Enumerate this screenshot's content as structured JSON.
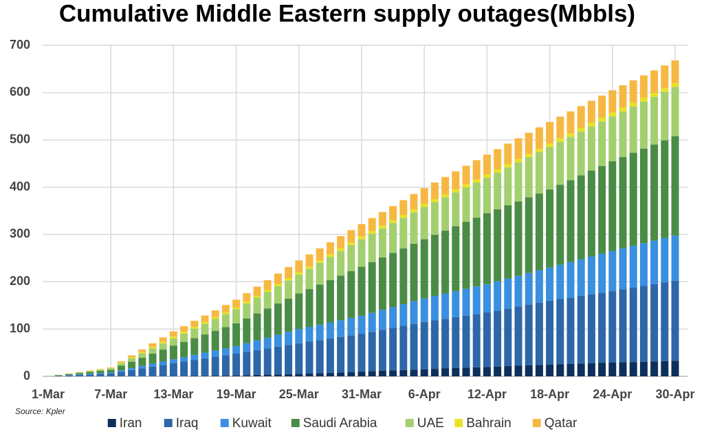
{
  "chart_data": {
    "type": "stacked_bar",
    "title": "Cumulative Middle Eastern supply outages(Mbbls)",
    "source": "Source: Kpler",
    "categories": [
      "1-Mar",
      null,
      null,
      null,
      null,
      null,
      "7-Mar",
      null,
      null,
      null,
      null,
      null,
      "13-Mar",
      null,
      null,
      null,
      null,
      null,
      "19-Mar",
      null,
      null,
      null,
      null,
      null,
      "25-Mar",
      null,
      null,
      null,
      null,
      null,
      "31-Mar",
      null,
      null,
      null,
      null,
      null,
      "6-Apr",
      null,
      null,
      null,
      null,
      null,
      "12-Apr",
      null,
      null,
      null,
      null,
      null,
      "18-Apr",
      null,
      null,
      null,
      null,
      null,
      "24-Apr",
      null,
      null,
      null,
      null,
      null,
      "30-Apr"
    ],
    "series": [
      {
        "name": "Iran",
        "color": "#0d2f5c",
        "values": [
          0,
          0,
          0,
          0,
          0,
          0,
          0,
          0,
          0,
          0,
          0,
          0,
          0,
          0.3,
          0.7,
          1,
          1.3,
          1.7,
          2,
          2.5,
          3,
          3.5,
          4,
          4.5,
          5,
          5.8,
          6.7,
          7.5,
          8.3,
          9.2,
          10,
          10.8,
          11.7,
          12.5,
          13.3,
          14.2,
          15,
          15.8,
          16.7,
          17.5,
          18.3,
          19.2,
          20,
          20.8,
          21.7,
          22.5,
          23.3,
          24.2,
          25,
          25.7,
          26.3,
          27,
          27.7,
          28.3,
          29,
          29.7,
          30.3,
          31,
          31.7,
          32.3,
          33
        ]
      },
      {
        "name": "Iraq",
        "color": "#2e67a8",
        "values": [
          0,
          1,
          2,
          3,
          4,
          5,
          6,
          9.7,
          13.3,
          17,
          20.7,
          24.3,
          28,
          31,
          34,
          37,
          40,
          43,
          46,
          49.2,
          52.3,
          55.5,
          58.7,
          61.8,
          65,
          67.5,
          70,
          72.5,
          75,
          77.5,
          80,
          83.3,
          86.7,
          90,
          93.3,
          96.7,
          100,
          102.5,
          105,
          107.5,
          110,
          112.5,
          115,
          118.3,
          121.7,
          125,
          128.3,
          131.7,
          135,
          137.7,
          140.3,
          143,
          145.7,
          148.3,
          151,
          154,
          157,
          160,
          163,
          166,
          169
        ]
      },
      {
        "name": "Kuwait",
        "color": "#3a8fe0",
        "values": [
          0,
          0.3,
          0.7,
          1,
          1.3,
          1.7,
          2,
          3,
          4,
          5,
          6,
          7,
          8,
          9.3,
          10.7,
          12,
          13.3,
          14.7,
          16,
          18.3,
          20.7,
          23,
          25.3,
          27.7,
          30,
          31.3,
          32.7,
          34,
          35.3,
          36.7,
          38,
          40,
          42,
          44,
          46,
          48,
          50,
          51.7,
          53.3,
          55,
          56.7,
          58.3,
          60,
          61.7,
          63.3,
          65,
          66.7,
          68.3,
          70,
          72.5,
          75,
          77.5,
          80,
          82.5,
          85,
          86.8,
          88.7,
          90.5,
          92.3,
          94.2,
          96
        ]
      },
      {
        "name": "Saudi Arabia",
        "color": "#4a8c45",
        "values": [
          0,
          1,
          2,
          3,
          4,
          5,
          6,
          9.8,
          13.7,
          17.5,
          21.3,
          25.2,
          29,
          32.2,
          35.3,
          38.5,
          41.7,
          44.8,
          48,
          52.5,
          57,
          61.5,
          66,
          70.5,
          75,
          79.8,
          84.7,
          89.5,
          94.3,
          99.2,
          104,
          107.5,
          111,
          114.5,
          118,
          121.5,
          125,
          129.2,
          133.3,
          137.5,
          141.7,
          145.8,
          150,
          152.5,
          155,
          157.5,
          160,
          162.5,
          165,
          169.2,
          173.3,
          177.5,
          181.7,
          185.8,
          190,
          193.3,
          196.7,
          200,
          203.3,
          206.7,
          210
        ]
      },
      {
        "name": "UAE",
        "color": "#a3cf6f",
        "values": [
          0,
          0.5,
          1,
          1.5,
          2,
          2.5,
          3,
          5,
          7,
          9,
          11,
          13,
          15,
          17.5,
          20,
          22.5,
          25,
          27.5,
          30,
          31.7,
          33.3,
          35,
          36.7,
          38.3,
          40,
          43,
          46,
          49,
          52,
          55,
          58,
          59.7,
          61.3,
          63,
          64.7,
          66.3,
          68,
          69.2,
          70.3,
          71.5,
          72.7,
          73.8,
          75,
          77.5,
          80,
          82.5,
          85,
          87.5,
          90,
          90.8,
          91.7,
          92.5,
          93.3,
          94.2,
          95,
          96.5,
          98,
          99.5,
          101,
          102.5,
          104
        ]
      },
      {
        "name": "Bahrain",
        "color": "#e8e22a",
        "values": [
          0,
          0.2,
          0.3,
          0.5,
          0.7,
          0.8,
          1,
          1.5,
          2,
          2.5,
          3,
          3.5,
          4,
          4,
          4,
          4,
          4,
          4,
          4,
          4.2,
          4.3,
          4.5,
          4.7,
          4.8,
          5,
          5.2,
          5.3,
          5.5,
          5.7,
          5.8,
          6,
          6,
          6,
          6,
          6,
          6,
          6,
          6.2,
          6.3,
          6.5,
          6.7,
          6.8,
          7,
          7,
          7,
          7,
          7,
          7,
          7,
          7.2,
          7.3,
          7.5,
          7.7,
          7.8,
          8,
          8,
          8,
          8,
          8,
          8,
          8
        ]
      },
      {
        "name": "Qatar",
        "color": "#f7b843",
        "values": [
          0,
          0.2,
          0.3,
          0.5,
          0.7,
          0.8,
          1,
          2.7,
          4.3,
          6,
          7.7,
          9.3,
          11,
          11.8,
          12.7,
          13.5,
          14.3,
          15.2,
          16,
          17.5,
          19,
          20.5,
          22,
          23.5,
          25,
          25.2,
          25.3,
          25.5,
          25.7,
          25.8,
          26,
          27.3,
          28.7,
          30,
          31.3,
          32.7,
          34,
          35.3,
          36.7,
          38,
          39.3,
          40.7,
          42,
          42.7,
          43.3,
          44,
          44.7,
          45.3,
          46,
          46.2,
          46.3,
          46.5,
          46.7,
          46.8,
          47,
          47.2,
          47.3,
          47.5,
          47.7,
          47.8,
          48
        ]
      }
    ],
    "ylim": [
      0,
      700
    ],
    "yticks": [
      0,
      100,
      200,
      300,
      400,
      500,
      600,
      700
    ],
    "grid": true
  }
}
